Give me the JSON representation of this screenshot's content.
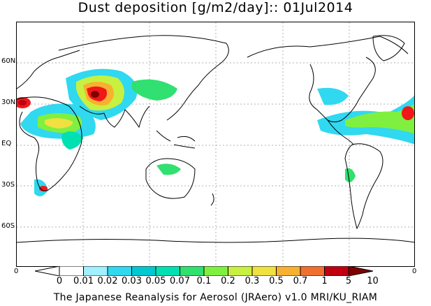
{
  "title": "Dust deposition [g/m2/day]:: 01Jul2014",
  "lat_labels": [
    "60N",
    "30N",
    "EQ",
    "30S",
    "60S"
  ],
  "lon_corner_labels": {
    "left": "0",
    "right": "0"
  },
  "legend": {
    "labels": [
      "0",
      "0.01",
      "0.02",
      "0.03",
      "0.05",
      "0.07",
      "0.1",
      "0.2",
      "0.3",
      "0.5",
      "0.7",
      "1",
      "5",
      "10"
    ],
    "colors": [
      "#ffffff",
      "#a0f0ff",
      "#30d8f0",
      "#00c8d0",
      "#00e0b0",
      "#30e070",
      "#80f040",
      "#c8f040",
      "#f0e040",
      "#f8b030",
      "#f07030",
      "#f01818",
      "#c00010",
      "#800000"
    ]
  },
  "footer": "The Japanese Reanalysis for Aerosol (JRAero) v1.0 MRI/KU_RIAM"
}
